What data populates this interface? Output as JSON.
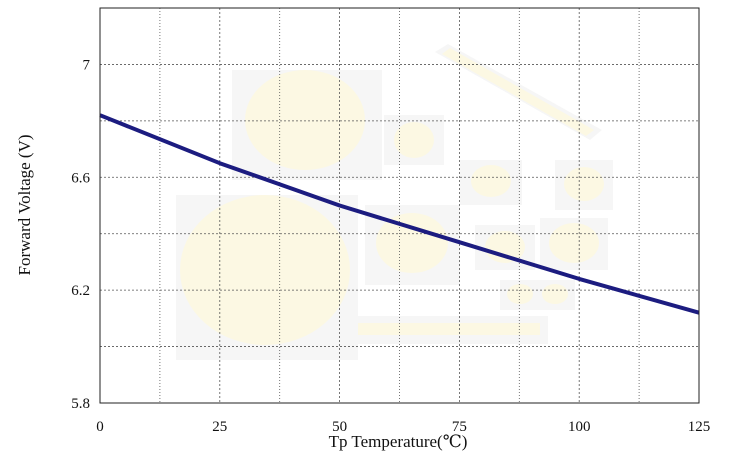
{
  "chart_data": {
    "type": "line",
    "xlabel": "Tp Temperature(℃)",
    "ylabel": "Forward Voltage (V)",
    "xlim": [
      0,
      125
    ],
    "ylim": [
      5.8,
      7.2
    ],
    "xticks": [
      0,
      25,
      50,
      75,
      100,
      125
    ],
    "yticks": [
      5.8,
      6.2,
      6.6,
      7
    ],
    "x_tick_labels": [
      "0",
      "25",
      "50",
      "75",
      "100",
      "125"
    ],
    "y_tick_labels": [
      "5.8",
      "6.2",
      "6.6",
      "7"
    ],
    "grid": true,
    "series": [
      {
        "color": "#1c1c80",
        "x": [
          0,
          25,
          50,
          75,
          100,
          125
        ],
        "y": [
          6.82,
          6.65,
          6.5,
          6.37,
          6.24,
          6.12
        ]
      }
    ]
  }
}
